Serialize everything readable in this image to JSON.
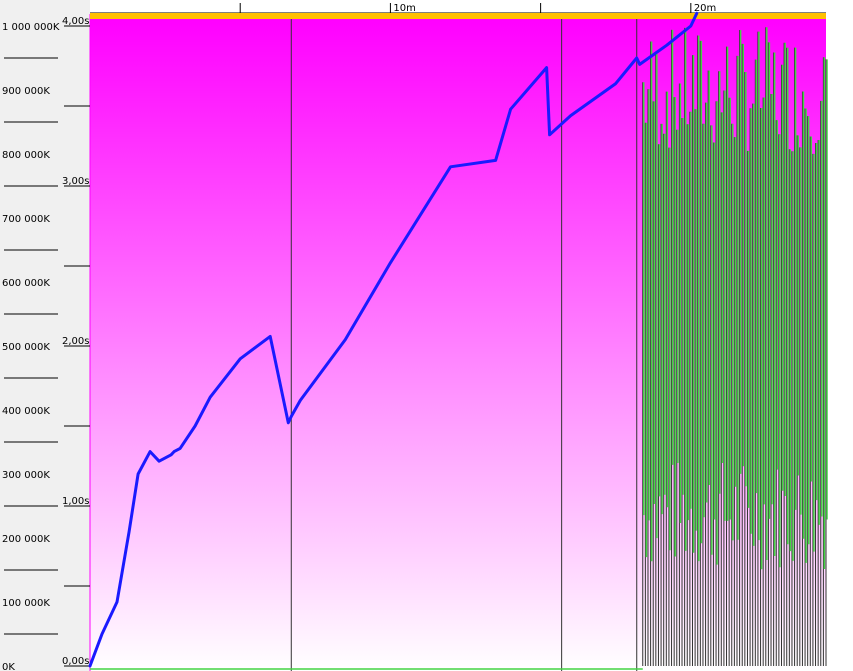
{
  "chart_data": {
    "type": "line",
    "time_ticks": [
      "10m",
      "20m"
    ],
    "time_range_minutes": [
      0,
      24.5
    ],
    "left_axis": {
      "tick_labels": [
        "0K",
        "100 000K",
        "200 000K",
        "300 000K",
        "400 000K",
        "500 000K",
        "600 000K",
        "700 000K",
        "800 000K",
        "900 000K",
        "1 000 000K"
      ],
      "range": [
        0,
        1000000
      ]
    },
    "right_axis": {
      "tick_labels": [
        "0,00s",
        "1,00s",
        "2,00s",
        "3,00s",
        "4,00s"
      ],
      "range": [
        0,
        4
      ]
    },
    "series": [
      {
        "color": "#1a1aff",
        "axis": "left",
        "x": [
          0,
          0.4,
          0.9,
          1.3,
          1.6,
          2.0,
          2.3,
          2.7,
          2.8,
          3.0,
          3.5,
          4.0,
          5.0,
          6.0,
          6.6,
          6.7,
          7.0,
          8.5,
          10.0,
          12.0,
          13.5,
          14.0,
          15.2,
          15.3,
          16.0,
          17.5,
          18.2,
          18.3,
          19.2,
          20.0,
          20.2
        ],
        "y": [
          0,
          50000,
          100000,
          210000,
          300000,
          335000,
          320000,
          330000,
          335000,
          340000,
          375000,
          420000,
          480000,
          515000,
          380000,
          390000,
          415000,
          510000,
          630000,
          780000,
          790000,
          870000,
          935000,
          830000,
          860000,
          910000,
          950000,
          940000,
          970000,
          1000000,
          1020000
        ]
      },
      {
        "color": "#44d444",
        "axis": "right",
        "x_range": [
          18.4,
          24.5
        ],
        "band_min": [
          0.6,
          1.3
        ],
        "band_max": [
          3.2,
          4.0
        ]
      }
    ],
    "gc_markers_minutes": [
      6.7,
      15.7,
      18.2
    ],
    "background_gradient": [
      "#ff00ff",
      "#ffffff"
    ],
    "top_bar_color": "#ffc000"
  }
}
